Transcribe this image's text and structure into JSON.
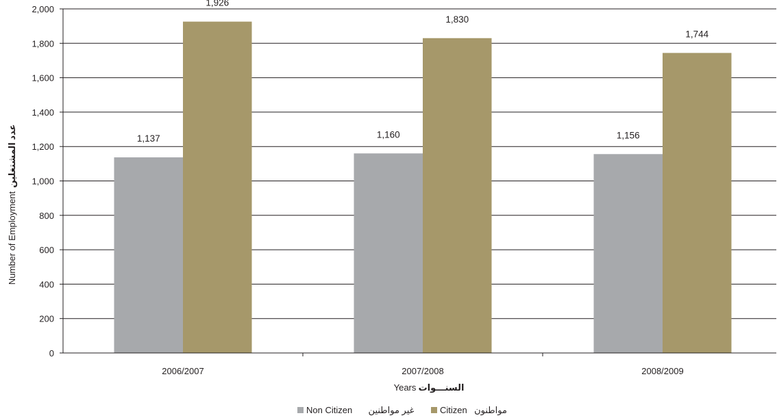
{
  "chart_data": {
    "type": "bar",
    "categories": [
      "2006/2007",
      "2007/2008",
      "2008/2009"
    ],
    "series": [
      {
        "name": "Non Citizen  غير مواطنين",
        "name_en": "Non Citizen",
        "name_ar": "غير مواطنين",
        "values": [
          1137,
          1160,
          1156
        ],
        "color": "#a7a9ac"
      },
      {
        "name": "Citizen  مواطنون",
        "name_en": "Citizen",
        "name_ar": "مواطنون",
        "values": [
          1926,
          1830,
          1744
        ],
        "color": "#a6986a"
      }
    ],
    "value_labels": [
      [
        "1,137",
        "1,160",
        "1,156"
      ],
      [
        "1,926",
        "1,830",
        "1,744"
      ]
    ],
    "xlabel": "Years",
    "xlabel_ar": "السنـــوات",
    "ylabel": "Number of Employment",
    "ylabel_ar": "عدد المشتغلين",
    "ylim": [
      0,
      2000
    ],
    "yticks": [
      0,
      200,
      400,
      600,
      800,
      1000,
      1200,
      1400,
      1600,
      1800,
      2000
    ],
    "ytick_labels": [
      "0",
      "200",
      "400",
      "600",
      "800",
      "1,000",
      "1,200",
      "1,400",
      "1,600",
      "1,800",
      "2,000"
    ],
    "grid": true,
    "legend_position": "bottom-center",
    "colors": {
      "axis": "#231f20",
      "grid": "#231f20",
      "background": "#ffffff"
    }
  }
}
